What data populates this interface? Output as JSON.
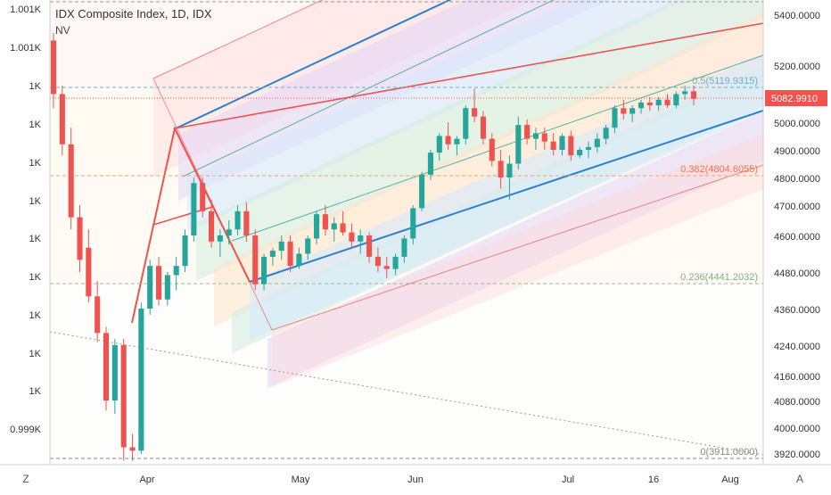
{
  "header": {
    "title": "IDX Composite Index, 1D, IDX",
    "subtitle": "NV"
  },
  "buttons": {
    "left_corner": "Z",
    "right_corner": "A"
  },
  "chart_data": {
    "type": "candlestick",
    "title": "IDX Composite Index, 1D, IDX",
    "x_tick_labels": [
      "Apr",
      "May",
      "Jun",
      "Jul",
      "16",
      "Aug"
    ],
    "right_axis_labels": [
      "5400.0000",
      "5200.0000",
      "5000.0000",
      "4900.0000",
      "4800.0000",
      "4700.0000",
      "4600.0000",
      "4480.0000",
      "4360.0000",
      "4240.0000",
      "4160.0000",
      "4080.0000",
      "4000.0000",
      "3920.0000"
    ],
    "left_axis_labels": [
      "1.001K",
      "1.001K",
      "1K",
      "1K",
      "1K",
      "1K",
      "1K",
      "1K",
      "1K",
      "1K",
      "1K",
      "0.999K"
    ],
    "last_price": "5082.9910",
    "last_price_color": "#ef5350",
    "fib_labels": [
      {
        "text": "0.5(5119.9315)",
        "color": "#6cb0c8"
      },
      {
        "text": "0.382(4804.6055)",
        "color": "#ff7043"
      },
      {
        "text": "0.236(4441.2032)",
        "color": "#7fae8c"
      },
      {
        "text": "0(3911.0000)",
        "color": "#888888"
      }
    ],
    "up_color": "#26a69a",
    "down_color": "#ef5350",
    "candles": [
      [
        5300,
        5330,
        5050,
        5100
      ],
      [
        5100,
        5130,
        4880,
        4920
      ],
      [
        4920,
        4980,
        4620,
        4660
      ],
      [
        4660,
        4700,
        4480,
        4520
      ],
      [
        4560,
        4620,
        4380,
        4400
      ],
      [
        4400,
        4450,
        4250,
        4280
      ],
      [
        4280,
        4300,
        4050,
        4080
      ],
      [
        4080,
        4260,
        4040,
        4240
      ],
      [
        4240,
        4260,
        3900,
        3940
      ],
      [
        3940,
        3980,
        3900,
        3930
      ],
      [
        3930,
        4380,
        3920,
        4360
      ],
      [
        4360,
        4520,
        4340,
        4500
      ],
      [
        4500,
        4530,
        4370,
        4390
      ],
      [
        4390,
        4480,
        4370,
        4470
      ],
      [
        4470,
        4530,
        4420,
        4500
      ],
      [
        4500,
        4620,
        4480,
        4600
      ],
      [
        4600,
        4800,
        4580,
        4780
      ],
      [
        4780,
        4800,
        4660,
        4680
      ],
      [
        4680,
        4720,
        4560,
        4580
      ],
      [
        4580,
        4620,
        4530,
        4600
      ],
      [
        4600,
        4650,
        4570,
        4620
      ],
      [
        4620,
        4700,
        4600,
        4680
      ],
      [
        4680,
        4710,
        4580,
        4600
      ],
      [
        4600,
        4620,
        4420,
        4440
      ],
      [
        4440,
        4540,
        4420,
        4530
      ],
      [
        4530,
        4560,
        4500,
        4550
      ],
      [
        4550,
        4600,
        4520,
        4580
      ],
      [
        4580,
        4600,
        4480,
        4500
      ],
      [
        4500,
        4560,
        4490,
        4540
      ],
      [
        4540,
        4600,
        4520,
        4590
      ],
      [
        4590,
        4680,
        4570,
        4670
      ],
      [
        4670,
        4700,
        4600,
        4620
      ],
      [
        4620,
        4660,
        4580,
        4640
      ],
      [
        4640,
        4680,
        4600,
        4610
      ],
      [
        4610,
        4640,
        4560,
        4580
      ],
      [
        4580,
        4620,
        4540,
        4600
      ],
      [
        4600,
        4610,
        4510,
        4530
      ],
      [
        4530,
        4560,
        4480,
        4500
      ],
      [
        4500,
        4530,
        4460,
        4490
      ],
      [
        4490,
        4540,
        4470,
        4530
      ],
      [
        4530,
        4600,
        4510,
        4590
      ],
      [
        4590,
        4700,
        4570,
        4690
      ],
      [
        4690,
        4820,
        4680,
        4810
      ],
      [
        4810,
        4900,
        4790,
        4890
      ],
      [
        4890,
        4960,
        4860,
        4950
      ],
      [
        4950,
        5000,
        4900,
        4920
      ],
      [
        4920,
        4950,
        4880,
        4940
      ],
      [
        4940,
        5060,
        4920,
        5050
      ],
      [
        5050,
        5120,
        5000,
        5020
      ],
      [
        5020,
        5040,
        4920,
        4940
      ],
      [
        4940,
        4960,
        4840,
        4860
      ],
      [
        4860,
        4900,
        4760,
        4800
      ],
      [
        4800,
        4880,
        4720,
        4850
      ],
      [
        4850,
        5020,
        4830,
        4990
      ],
      [
        4990,
        5010,
        4920,
        4940
      ],
      [
        4940,
        4980,
        4900,
        4960
      ],
      [
        4960,
        4980,
        4900,
        4930
      ],
      [
        4930,
        4960,
        4880,
        4900
      ],
      [
        4900,
        4960,
        4880,
        4950
      ],
      [
        4950,
        4970,
        4860,
        4880
      ],
      [
        4880,
        4910,
        4870,
        4900
      ],
      [
        4900,
        4930,
        4870,
        4910
      ],
      [
        4910,
        4960,
        4890,
        4940
      ],
      [
        4940,
        4990,
        4920,
        4980
      ],
      [
        4980,
        5060,
        4960,
        5050
      ],
      [
        5050,
        5080,
        5010,
        5030
      ],
      [
        5030,
        5060,
        5000,
        5050
      ],
      [
        5050,
        5080,
        5030,
        5070
      ],
      [
        5070,
        5090,
        5040,
        5060
      ],
      [
        5060,
        5090,
        5040,
        5080
      ],
      [
        5080,
        5100,
        5050,
        5060
      ],
      [
        5060,
        5110,
        5050,
        5100
      ],
      [
        5100,
        5130,
        5080,
        5110
      ],
      [
        5110,
        5130,
        5060,
        5082.991
      ]
    ]
  }
}
